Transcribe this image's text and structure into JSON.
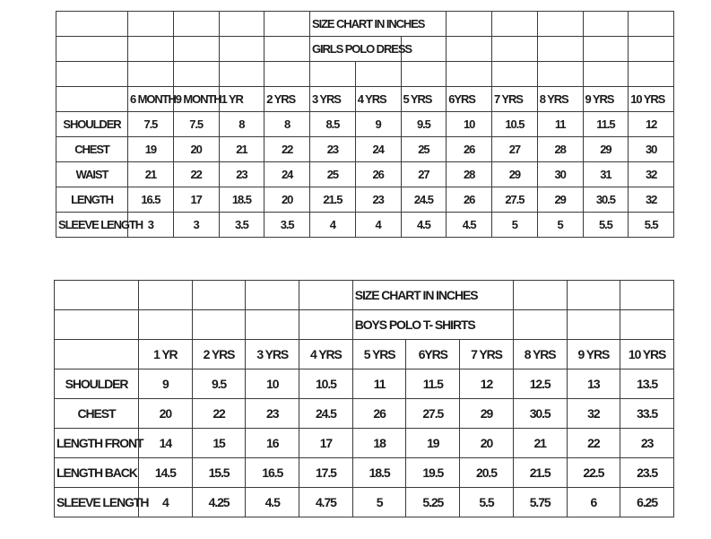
{
  "girls_chart": {
    "title": "SIZE CHART IN INCHES",
    "subtitle": "GIRLS  POLO DRESS",
    "sizes": [
      "6 MONTH",
      "9 MONTH",
      "1 YR",
      "2 YRS",
      "3 YRS",
      "4 YRS",
      "5 YRS",
      "6YRS",
      "7 YRS",
      "8 YRS",
      "9 YRS",
      "10 YRS"
    ],
    "rows": [
      {
        "label": "SHOULDER",
        "values": [
          "7.5",
          "7.5",
          "8",
          "8",
          "8.5",
          "9",
          "9.5",
          "10",
          "10.5",
          "11",
          "11.5",
          "12"
        ]
      },
      {
        "label": "CHEST",
        "values": [
          "19",
          "20",
          "21",
          "22",
          "23",
          "24",
          "25",
          "26",
          "27",
          "28",
          "29",
          "30"
        ]
      },
      {
        "label": "WAIST",
        "values": [
          "21",
          "22",
          "23",
          "24",
          "25",
          "26",
          "27",
          "28",
          "29",
          "30",
          "31",
          "32"
        ]
      },
      {
        "label": "LENGTH",
        "values": [
          "16.5",
          "17",
          "18.5",
          "20",
          "21.5",
          "23",
          "24.5",
          "26",
          "27.5",
          "29",
          "30.5",
          "32"
        ]
      },
      {
        "label": "SLEEVE LENGTH",
        "values": [
          "3",
          "3",
          "3.5",
          "3.5",
          "4",
          "4",
          "4.5",
          "4.5",
          "5",
          "5",
          "5.5",
          "5.5"
        ]
      }
    ]
  },
  "boys_chart": {
    "title": "SIZE CHART IN INCHES",
    "subtitle": "BOYS POLO T- SHIRTS",
    "sizes": [
      "1 YR",
      "2 YRS",
      "3 YRS",
      "4 YRS",
      "5 YRS",
      "6YRS",
      "7 YRS",
      "8 YRS",
      "9 YRS",
      "10 YRS"
    ],
    "rows": [
      {
        "label": "SHOULDER",
        "values": [
          "9",
          "9.5",
          "10",
          "10.5",
          "11",
          "11.5",
          "12",
          "12.5",
          "13",
          "13.5"
        ]
      },
      {
        "label": "CHEST",
        "values": [
          "20",
          "22",
          "23",
          "24.5",
          "26",
          "27.5",
          "29",
          "30.5",
          "32",
          "33.5"
        ]
      },
      {
        "label": "LENGTH FRONT",
        "values": [
          "14",
          "15",
          "16",
          "17",
          "18",
          "19",
          "20",
          "21",
          "22",
          "23"
        ]
      },
      {
        "label": "LENGTH BACK",
        "values": [
          "14.5",
          "15.5",
          "16.5",
          "17.5",
          "18.5",
          "19.5",
          "20.5",
          "21.5",
          "22.5",
          "23.5"
        ]
      },
      {
        "label": "SLEEVE LENGTH",
        "values": [
          "4",
          "4.25",
          "4.5",
          "4.75",
          "5",
          "5.25",
          "5.5",
          "5.75",
          "6",
          "6.25"
        ]
      }
    ]
  }
}
